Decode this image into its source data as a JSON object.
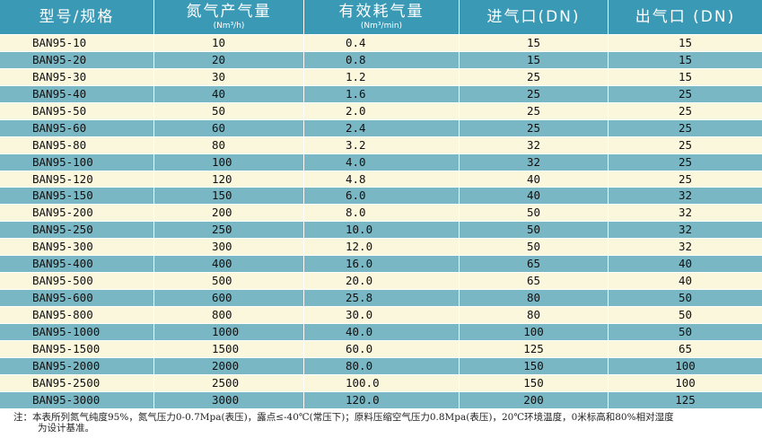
{
  "table": {
    "headers": [
      {
        "main": "型号/规格",
        "sub": ""
      },
      {
        "main": "氮气产气量",
        "sub": "(Nm³/h)"
      },
      {
        "main": "有效耗气量",
        "sub": "(Nm³/min)"
      },
      {
        "main": "进气口(DN)",
        "sub": ""
      },
      {
        "main": "出气口 (DN)",
        "sub": ""
      }
    ],
    "rows": [
      [
        "BAN95-10",
        "10",
        "0.4",
        "15",
        "15"
      ],
      [
        "BAN95-20",
        "20",
        "0.8",
        "15",
        "15"
      ],
      [
        "BAN95-30",
        "30",
        "1.2",
        "25",
        "15"
      ],
      [
        "BAN95-40",
        "40",
        "1.6",
        "25",
        "25"
      ],
      [
        "BAN95-50",
        "50",
        "2.0",
        "25",
        "25"
      ],
      [
        "BAN95-60",
        "60",
        "2.4",
        "25",
        "25"
      ],
      [
        "BAN95-80",
        "80",
        "3.2",
        "32",
        "25"
      ],
      [
        "BAN95-100",
        "100",
        "4.0",
        "32",
        "25"
      ],
      [
        "BAN95-120",
        "120",
        "4.8",
        "40",
        "25"
      ],
      [
        "BAN95-150",
        "150",
        "6.0",
        "40",
        "32"
      ],
      [
        "BAN95-200",
        "200",
        "8.0",
        "50",
        "32"
      ],
      [
        "BAN95-250",
        "250",
        "10.0",
        "50",
        "32"
      ],
      [
        "BAN95-300",
        "300",
        "12.0",
        "50",
        "32"
      ],
      [
        "BAN95-400",
        "400",
        "16.0",
        "65",
        "40"
      ],
      [
        "BAN95-500",
        "500",
        "20.0",
        "65",
        "40"
      ],
      [
        "BAN95-600",
        "600",
        "25.8",
        "80",
        "50"
      ],
      [
        "BAN95-800",
        "800",
        "30.0",
        "80",
        "50"
      ],
      [
        "BAN95-1000",
        "1000",
        "40.0",
        "100",
        "50"
      ],
      [
        "BAN95-1500",
        "1500",
        "60.0",
        "125",
        "65"
      ],
      [
        "BAN95-2000",
        "2000",
        "80.0",
        "150",
        "100"
      ],
      [
        "BAN95-2500",
        "2500",
        "100.0",
        "150",
        "100"
      ],
      [
        "BAN95-3000",
        "3000",
        "120.0",
        "200",
        "125"
      ]
    ]
  },
  "note": {
    "line1": "注：本表所列氮气纯度95%，氮气压力0-0.7Mpa(表压)，露点≤-40℃(常压下)；原料压缩空气压力0.8Mpa(表压)，20℃环境温度，0米标高和80%相对湿度",
    "line2": "为设计基准。"
  },
  "colors": {
    "header_bg": "#3a9ab6",
    "row_light": "#fbf7dc",
    "row_dark": "#7ab7c4"
  }
}
